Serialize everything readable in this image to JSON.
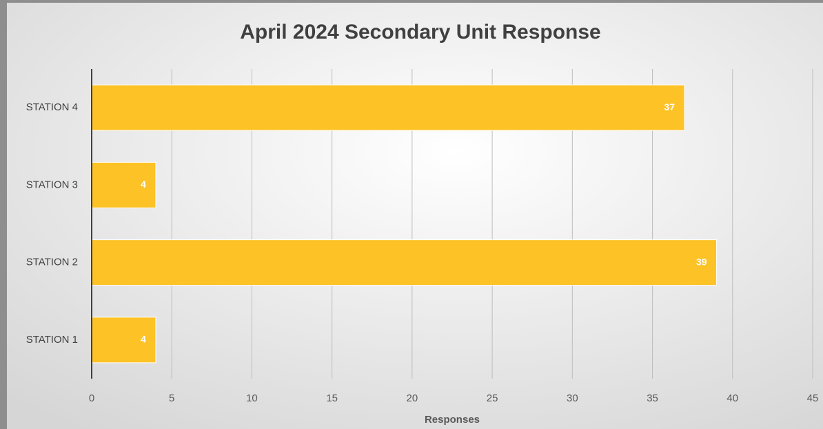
{
  "chart_data": {
    "type": "bar",
    "orientation": "horizontal",
    "title": "April 2024 Secondary Unit Response",
    "x_label": "Responses",
    "categories": [
      "STATION 1",
      "STATION 2",
      "STATION 3",
      "STATION 4"
    ],
    "values": [
      4,
      39,
      4,
      37
    ],
    "color": "#fcc226",
    "xlim": [
      0,
      45
    ],
    "xticks": [
      0,
      5,
      10,
      15,
      20,
      25,
      30,
      35,
      40,
      45
    ],
    "grid": true
  }
}
